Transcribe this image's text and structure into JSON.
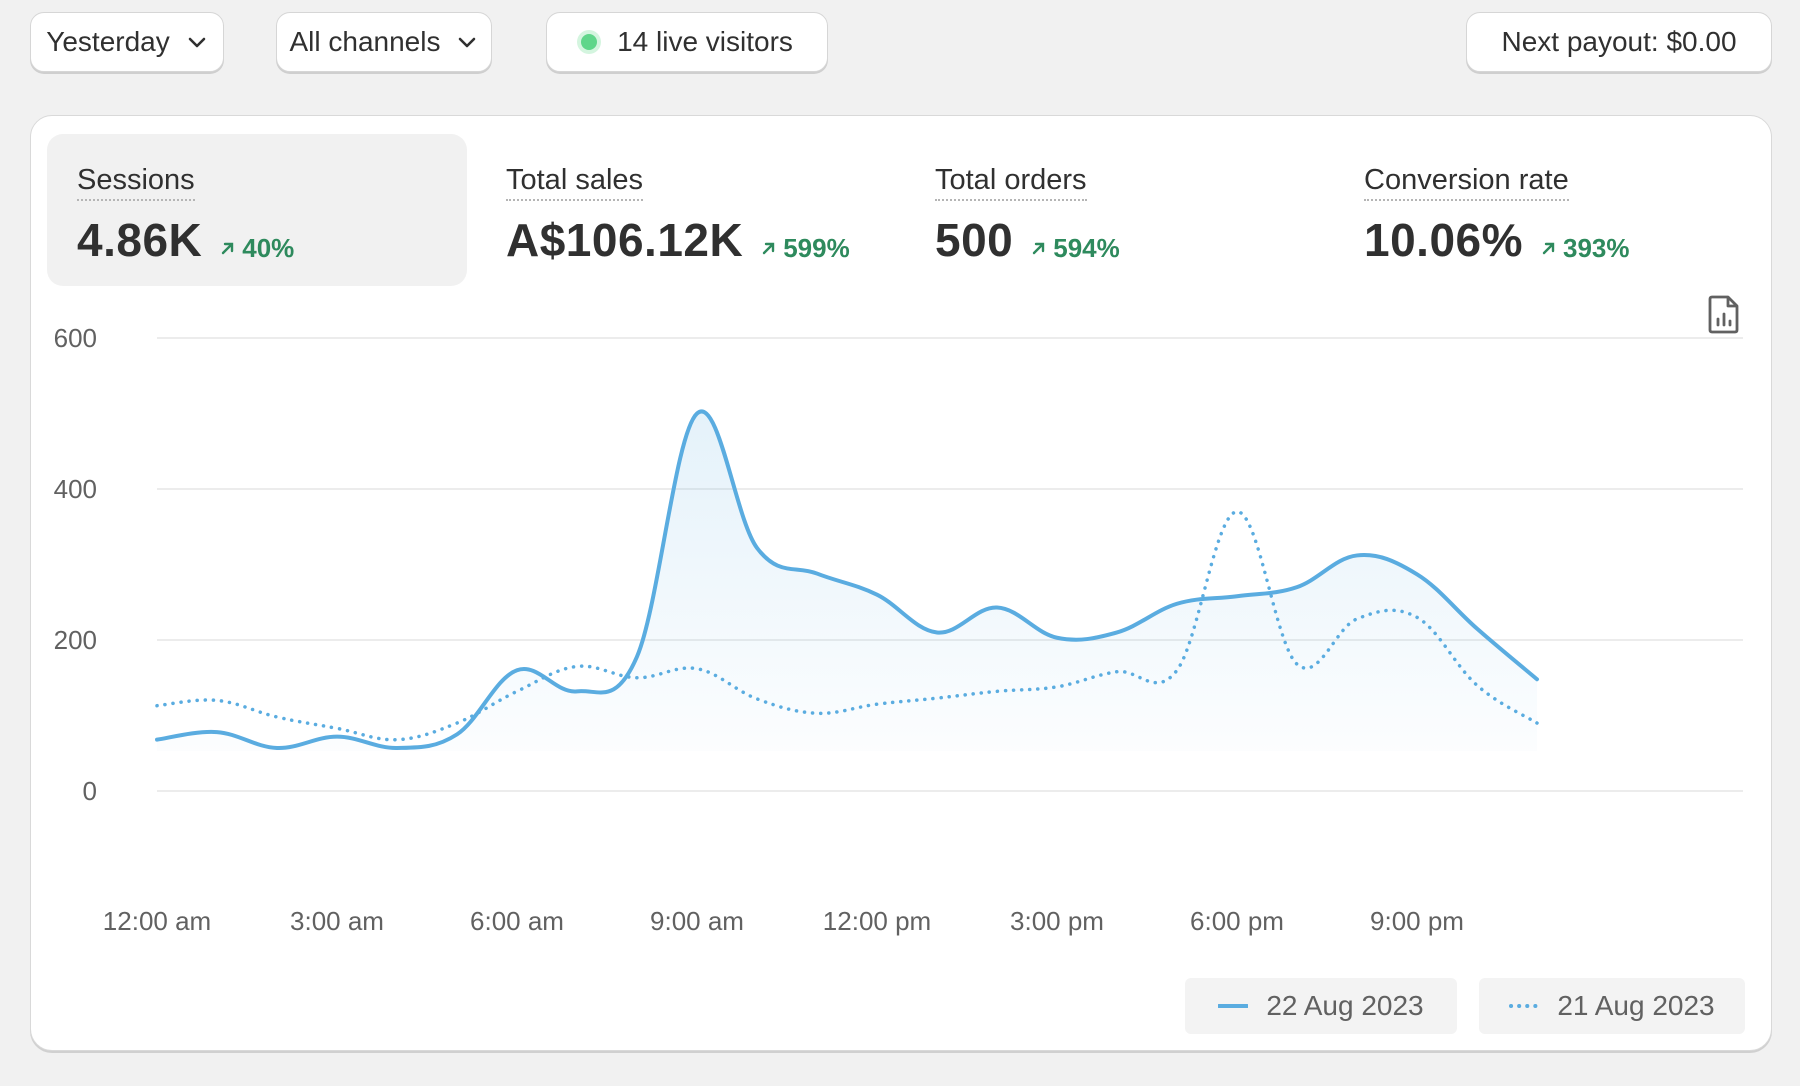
{
  "filters": {
    "date_label": "Yesterday",
    "channel_label": "All channels",
    "live_visitors": "14 live visitors",
    "payout": "Next payout: $0.00"
  },
  "metrics": [
    {
      "label": "Sessions",
      "value": "4.86K",
      "change": "40%"
    },
    {
      "label": "Total sales",
      "value": "A$106.12K",
      "change": "599%"
    },
    {
      "label": "Total orders",
      "value": "500",
      "change": "594%"
    },
    {
      "label": "Conversion rate",
      "value": "10.06%",
      "change": "393%"
    }
  ],
  "colors": {
    "series": "#5aace0",
    "positive": "#2e8a5d",
    "grid": "#e6e6e6"
  },
  "chart_data": {
    "type": "line",
    "ylim": [
      0,
      600
    ],
    "yticks": [
      "0",
      "200",
      "400",
      "600"
    ],
    "xtick_labels": [
      "12:00 am",
      "3:00 am",
      "6:00 am",
      "9:00 am",
      "12:00 pm",
      "3:00 pm",
      "6:00 pm",
      "9:00 pm"
    ],
    "x_hours": [
      0,
      1,
      2,
      3,
      4,
      5,
      6,
      7,
      8,
      9,
      10,
      11,
      12,
      13,
      14,
      15,
      16,
      17,
      18,
      19,
      20,
      21,
      22,
      23
    ],
    "series": [
      {
        "name": "22 Aug 2023",
        "style": "solid",
        "values": [
          68,
          78,
          57,
          72,
          57,
          75,
          160,
          132,
          178,
          500,
          322,
          288,
          260,
          210,
          243,
          203,
          210,
          248,
          258,
          270,
          312,
          287,
          215,
          148
        ]
      },
      {
        "name": "21 Aug 2023",
        "style": "dotted",
        "values": [
          113,
          120,
          98,
          83,
          68,
          90,
          132,
          165,
          150,
          162,
          122,
          103,
          115,
          123,
          132,
          138,
          158,
          160,
          370,
          168,
          228,
          230,
          140,
          90
        ]
      }
    ]
  }
}
